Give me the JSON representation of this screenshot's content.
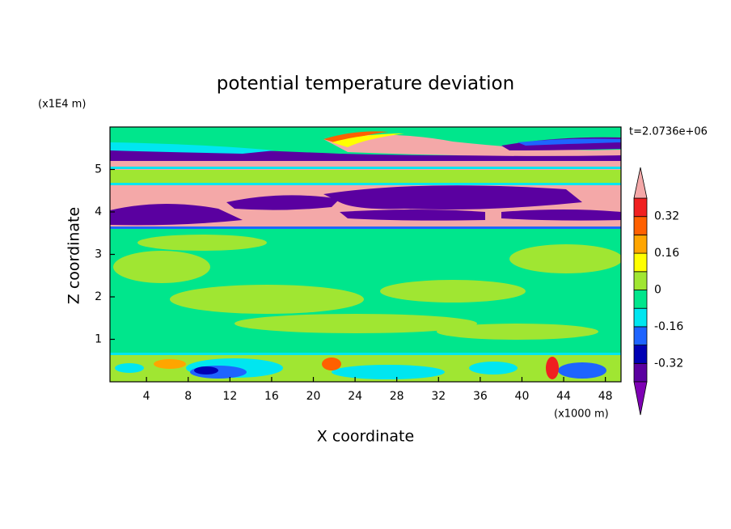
{
  "chart_data": {
    "type": "contour",
    "title": "potential temperature deviation",
    "x_label": "X coordinate",
    "y_label": "Z coordinate",
    "x_unit_label": "(x1000 m)",
    "y_unit_label": "(x1E4 m)",
    "time_label": "t=2.0736e+06",
    "xlim": [
      0.5,
      49.5
    ],
    "xticks": [
      4,
      8,
      12,
      16,
      20,
      24,
      28,
      32,
      36,
      40,
      44,
      48
    ],
    "ylim": [
      0,
      6
    ],
    "yticks": [
      1,
      2,
      3,
      4,
      5
    ],
    "colorbar": {
      "levels": [
        -0.4,
        -0.32,
        -0.24,
        -0.16,
        -0.08,
        0,
        0.08,
        0.16,
        0.24,
        0.32,
        0.4
      ],
      "ticks": [
        -0.32,
        -0.16,
        0,
        0.16,
        0.32
      ],
      "colors": [
        "#7e00b4",
        "#5a00a0",
        "#0000b4",
        "#1e64ff",
        "#00e6f0",
        "#00e68c",
        "#a0e632",
        "#ffff00",
        "#ffa500",
        "#ff6000",
        "#f02020",
        "#f4a8a8"
      ]
    }
  }
}
